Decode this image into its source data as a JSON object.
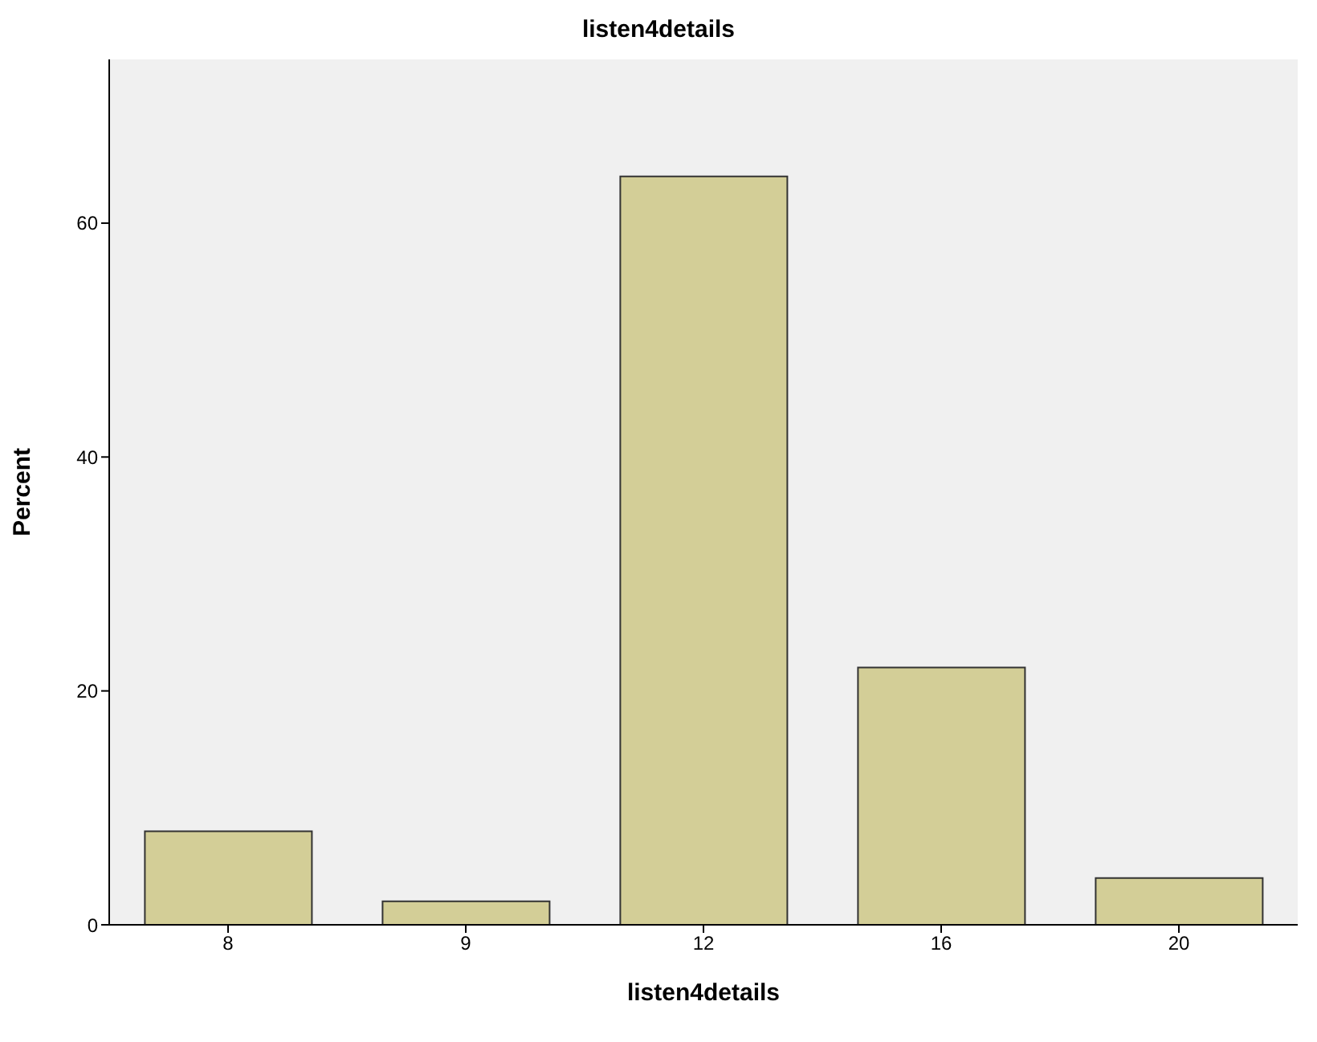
{
  "chart_data": {
    "type": "bar",
    "title": "listen4details",
    "xlabel": "listen4details",
    "ylabel": "Percent",
    "categories": [
      "8",
      "9",
      "12",
      "16",
      "20"
    ],
    "series": [
      {
        "color": "#d3ce97",
        "values": [
          8,
          2,
          64,
          22,
          4
        ]
      }
    ],
    "ylim": [
      0,
      74
    ],
    "yticks": [
      0,
      20,
      40,
      60
    ],
    "grid": false,
    "legend": false
  }
}
